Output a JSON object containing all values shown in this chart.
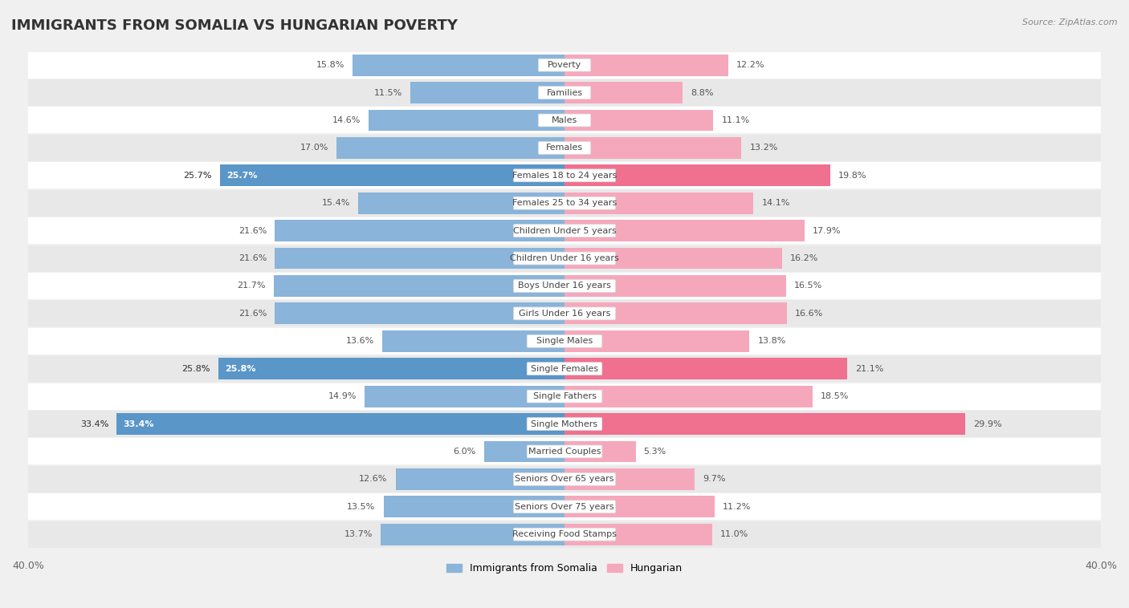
{
  "title": "IMMIGRANTS FROM SOMALIA VS HUNGARIAN POVERTY",
  "source": "Source: ZipAtlas.com",
  "categories": [
    "Poverty",
    "Families",
    "Males",
    "Females",
    "Females 18 to 24 years",
    "Females 25 to 34 years",
    "Children Under 5 years",
    "Children Under 16 years",
    "Boys Under 16 years",
    "Girls Under 16 years",
    "Single Males",
    "Single Females",
    "Single Fathers",
    "Single Mothers",
    "Married Couples",
    "Seniors Over 65 years",
    "Seniors Over 75 years",
    "Receiving Food Stamps"
  ],
  "somalia_values": [
    15.8,
    11.5,
    14.6,
    17.0,
    25.7,
    15.4,
    21.6,
    21.6,
    21.7,
    21.6,
    13.6,
    25.8,
    14.9,
    33.4,
    6.0,
    12.6,
    13.5,
    13.7
  ],
  "hungarian_values": [
    12.2,
    8.8,
    11.1,
    13.2,
    19.8,
    14.1,
    17.9,
    16.2,
    16.5,
    16.6,
    13.8,
    21.1,
    18.5,
    29.9,
    5.3,
    9.7,
    11.2,
    11.0
  ],
  "somalia_color": "#8ab4d9",
  "hungarian_color": "#f5a8bc",
  "somalia_highlight_color": "#5a96c8",
  "hungarian_highlight_color": "#f07090",
  "highlight_rows": [
    4,
    11,
    13
  ],
  "xlim": 40.0,
  "background_color": "#f0f0f0",
  "row_color_light": "#ffffff",
  "row_color_dark": "#e8e8e8",
  "separator_color": "#d8d8d8",
  "title_fontsize": 13,
  "label_fontsize": 8.0,
  "value_fontsize": 8.0,
  "legend_somalia": "Immigrants from Somalia",
  "legend_hungarian": "Hungarian"
}
